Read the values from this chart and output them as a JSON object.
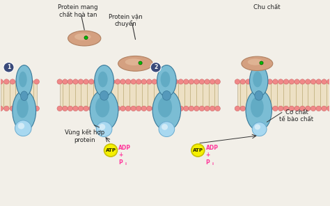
{
  "bg_color": "#f2efe8",
  "membrane_color": "#ede0c4",
  "membrane_stripe_color": "#c8b88a",
  "protein_blue_light": "#7bbdd4",
  "protein_blue_mid": "#5599bb",
  "protein_blue_dark": "#3a7a9a",
  "protein_blue_inner": "#4a9ab5",
  "protein_pink_head": "#f08888",
  "protein_tan": "#d4a080",
  "protein_tan_edge": "#b08060",
  "atp_yellow": "#f5f000",
  "atp_edge": "#c8c000",
  "adp_text": "#ff3399",
  "label_color": "#222222",
  "circle_color": "#3a4a7a",
  "green_dot": "#00bb00",
  "labels": {
    "protein_mang": "Protein mang\nchất hoà tan",
    "protein_van": "Protein vận\nchuyển",
    "chu_chat": "Chu chất",
    "vung_ket": "Vùng kết hợp\nprotein",
    "co_chat": "Cơ chất\ntế bào chất"
  },
  "xlim": [
    0,
    10
  ],
  "ylim": [
    0,
    6.5
  ]
}
